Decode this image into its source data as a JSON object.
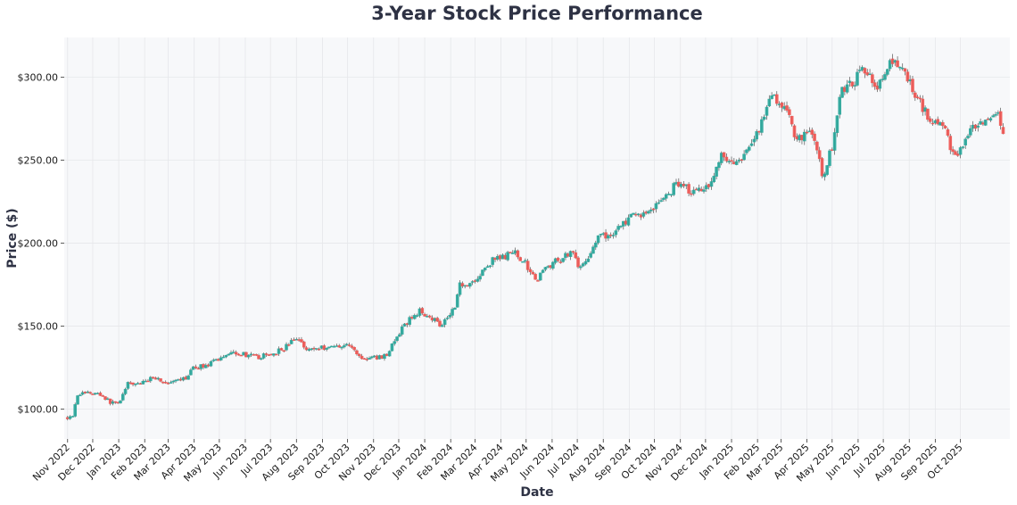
{
  "chart_data": {
    "type": "candlestick",
    "title": "3-Year Stock Price Performance",
    "xlabel": "Date",
    "ylabel": "Price ($)",
    "ylim": [
      82,
      324
    ],
    "grid": true,
    "yticks": [
      100,
      150,
      200,
      250,
      300
    ],
    "ytick_labels": [
      "$100.00",
      "$150.00",
      "$200.00",
      "$250.00",
      "$300.00"
    ],
    "x_range": [
      "2022-10-28",
      "2025-11-29"
    ],
    "xticks": [
      "2022-11-01",
      "2022-12-01",
      "2023-01-01",
      "2023-02-01",
      "2023-03-01",
      "2023-04-01",
      "2023-05-01",
      "2023-06-01",
      "2023-07-01",
      "2023-08-01",
      "2023-09-01",
      "2023-10-01",
      "2023-11-01",
      "2023-12-01",
      "2024-01-01",
      "2024-02-01",
      "2024-03-01",
      "2024-04-01",
      "2024-05-01",
      "2024-06-01",
      "2024-07-01",
      "2024-08-01",
      "2024-09-01",
      "2024-10-01",
      "2024-11-01",
      "2024-12-01",
      "2025-01-01",
      "2025-02-01",
      "2025-03-01",
      "2025-04-01",
      "2025-05-01",
      "2025-06-01",
      "2025-07-01",
      "2025-08-01",
      "2025-09-01",
      "2025-10-01"
    ],
    "xtick_labels": [
      "Nov 2022",
      "Dec 2022",
      "Jan 2023",
      "Feb 2023",
      "Mar 2023",
      "Apr 2023",
      "May 2023",
      "Jun 2023",
      "Jul 2023",
      "Aug 2023",
      "Sep 2023",
      "Oct 2023",
      "Nov 2023",
      "Dec 2023",
      "Jan 2024",
      "Feb 2024",
      "Mar 2024",
      "Apr 2024",
      "May 2024",
      "Jun 2024",
      "Jul 2024",
      "Aug 2024",
      "Sep 2024",
      "Oct 2024",
      "Nov 2024",
      "Dec 2024",
      "Jan 2025",
      "Feb 2025",
      "Mar 2025",
      "Apr 2025",
      "May 2025",
      "Jun 2025",
      "Jul 2025",
      "Aug 2025",
      "Sep 2025",
      "Oct 2025"
    ],
    "series_start": "2022-11-01",
    "bar_interval_days": 3,
    "up_color": "#26a69a",
    "down_color": "#ef5350",
    "close_path": [
      [
        "2022-11-01",
        95
      ],
      [
        "2022-11-08",
        97
      ],
      [
        "2022-11-12",
        109
      ],
      [
        "2022-11-25",
        110
      ],
      [
        "2022-12-10",
        109
      ],
      [
        "2022-12-22",
        104
      ],
      [
        "2023-01-01",
        104
      ],
      [
        "2023-01-12",
        115
      ],
      [
        "2023-02-01",
        116
      ],
      [
        "2023-02-10",
        120
      ],
      [
        "2023-03-01",
        115
      ],
      [
        "2023-03-20",
        118
      ],
      [
        "2023-04-01",
        125
      ],
      [
        "2023-04-20",
        127
      ],
      [
        "2023-05-15",
        135
      ],
      [
        "2023-06-15",
        131
      ],
      [
        "2023-07-01",
        133
      ],
      [
        "2023-07-15",
        136
      ],
      [
        "2023-08-01",
        143
      ],
      [
        "2023-08-15",
        136
      ],
      [
        "2023-09-15",
        138
      ],
      [
        "2023-10-01",
        139
      ],
      [
        "2023-10-20",
        130
      ],
      [
        "2023-11-15",
        132
      ],
      [
        "2023-12-10",
        152
      ],
      [
        "2023-12-25",
        159
      ],
      [
        "2024-01-05",
        157
      ],
      [
        "2024-01-20",
        151
      ],
      [
        "2024-02-05",
        161
      ],
      [
        "2024-02-12",
        175
      ],
      [
        "2024-03-01",
        177
      ],
      [
        "2024-03-20",
        189
      ],
      [
        "2024-04-10",
        193
      ],
      [
        "2024-04-20",
        194
      ],
      [
        "2024-05-15",
        178
      ],
      [
        "2024-05-25",
        186
      ],
      [
        "2024-06-10",
        190
      ],
      [
        "2024-06-25",
        196
      ],
      [
        "2024-07-05",
        184
      ],
      [
        "2024-07-25",
        203
      ],
      [
        "2024-08-10",
        205
      ],
      [
        "2024-08-20",
        210
      ],
      [
        "2024-09-05",
        216
      ],
      [
        "2024-09-20",
        218
      ],
      [
        "2024-10-10",
        226
      ],
      [
        "2024-11-01",
        238
      ],
      [
        "2024-11-15",
        230
      ],
      [
        "2024-12-10",
        238
      ],
      [
        "2024-12-18",
        253
      ],
      [
        "2025-01-05",
        248
      ],
      [
        "2025-01-15",
        250
      ],
      [
        "2025-02-05",
        272
      ],
      [
        "2025-02-20",
        290
      ],
      [
        "2025-03-10",
        277
      ],
      [
        "2025-03-20",
        262
      ],
      [
        "2025-04-05",
        270
      ],
      [
        "2025-04-20",
        240
      ],
      [
        "2025-05-01",
        258
      ],
      [
        "2025-05-10",
        290
      ],
      [
        "2025-05-25",
        297
      ],
      [
        "2025-06-10",
        305
      ],
      [
        "2025-06-25",
        295
      ],
      [
        "2025-07-10",
        308
      ],
      [
        "2025-07-25",
        305
      ],
      [
        "2025-08-10",
        288
      ],
      [
        "2025-08-25",
        276
      ],
      [
        "2025-09-10",
        270
      ],
      [
        "2025-09-20",
        258
      ],
      [
        "2025-09-25",
        251
      ],
      [
        "2025-10-15",
        268
      ],
      [
        "2025-11-01",
        272
      ],
      [
        "2025-11-15",
        276
      ],
      [
        "2025-11-22",
        262
      ]
    ]
  }
}
